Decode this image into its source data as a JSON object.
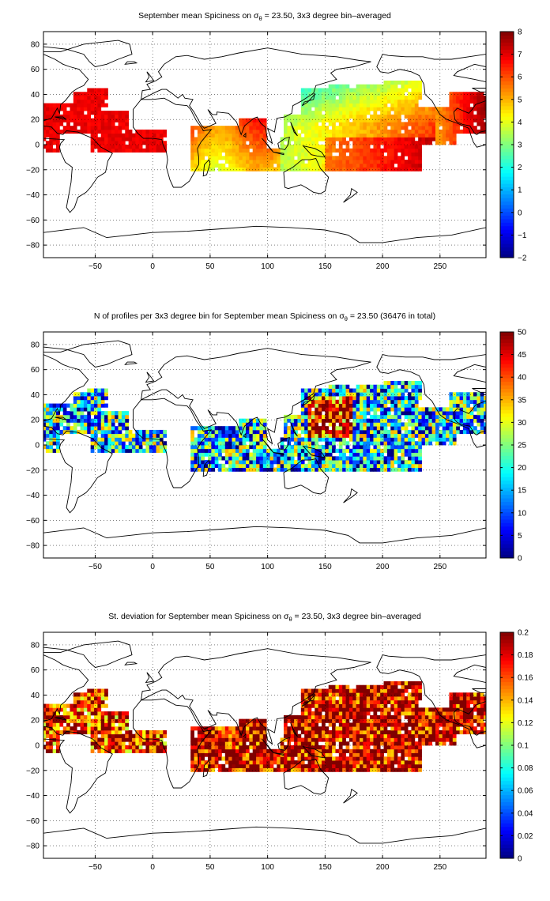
{
  "chart_data": [
    {
      "type": "heatmap",
      "title_prefix": "September mean Spiciness on σ",
      "title_sub": "θ",
      "title_suffix": " = 23.50, 3x3 degree bin–averaged",
      "xlim": [
        -95,
        290
      ],
      "ylim": [
        -90,
        90
      ],
      "xticks": [
        -50,
        0,
        50,
        100,
        150,
        200,
        250
      ],
      "yticks": [
        -80,
        -60,
        -40,
        -20,
        0,
        20,
        40,
        60,
        80
      ],
      "grid": true,
      "colorbar": {
        "min": -2,
        "max": 8,
        "ticks": [
          -2,
          -1,
          0,
          1,
          2,
          3,
          4,
          5,
          6,
          7,
          8
        ],
        "colormap": "jet"
      },
      "field": "mean"
    },
    {
      "type": "heatmap",
      "title_prefix": "N of profiles per 3x3 degree bin for September mean Spiciness on σ",
      "title_sub": "θ",
      "title_suffix": " = 23.50 (36476 in total)",
      "xlim": [
        -95,
        290
      ],
      "ylim": [
        -90,
        90
      ],
      "xticks": [
        -50,
        0,
        50,
        100,
        150,
        200,
        250
      ],
      "yticks": [
        -80,
        -60,
        -40,
        -20,
        0,
        20,
        40,
        60,
        80
      ],
      "grid": true,
      "colorbar": {
        "min": 0,
        "max": 50,
        "ticks": [
          0,
          5,
          10,
          15,
          20,
          25,
          30,
          35,
          40,
          45,
          50
        ],
        "colormap": "jet"
      },
      "field": "count"
    },
    {
      "type": "heatmap",
      "title_prefix": "St. deviation for September mean Spiciness on σ",
      "title_sub": "θ",
      "title_suffix": " = 23.50, 3x3 degree bin–averaged",
      "xlim": [
        -95,
        290
      ],
      "ylim": [
        -90,
        90
      ],
      "xticks": [
        -50,
        0,
        50,
        100,
        150,
        200,
        250
      ],
      "yticks": [
        -80,
        -60,
        -40,
        -20,
        0,
        20,
        40,
        60,
        80
      ],
      "grid": true,
      "colorbar": {
        "min": 0,
        "max": 0.2,
        "ticks": [
          0,
          0.02,
          0.04,
          0.06,
          0.08,
          0.1,
          0.12,
          0.14,
          0.16,
          0.18,
          0.2
        ],
        "colormap": "jet"
      },
      "field": "std"
    }
  ]
}
